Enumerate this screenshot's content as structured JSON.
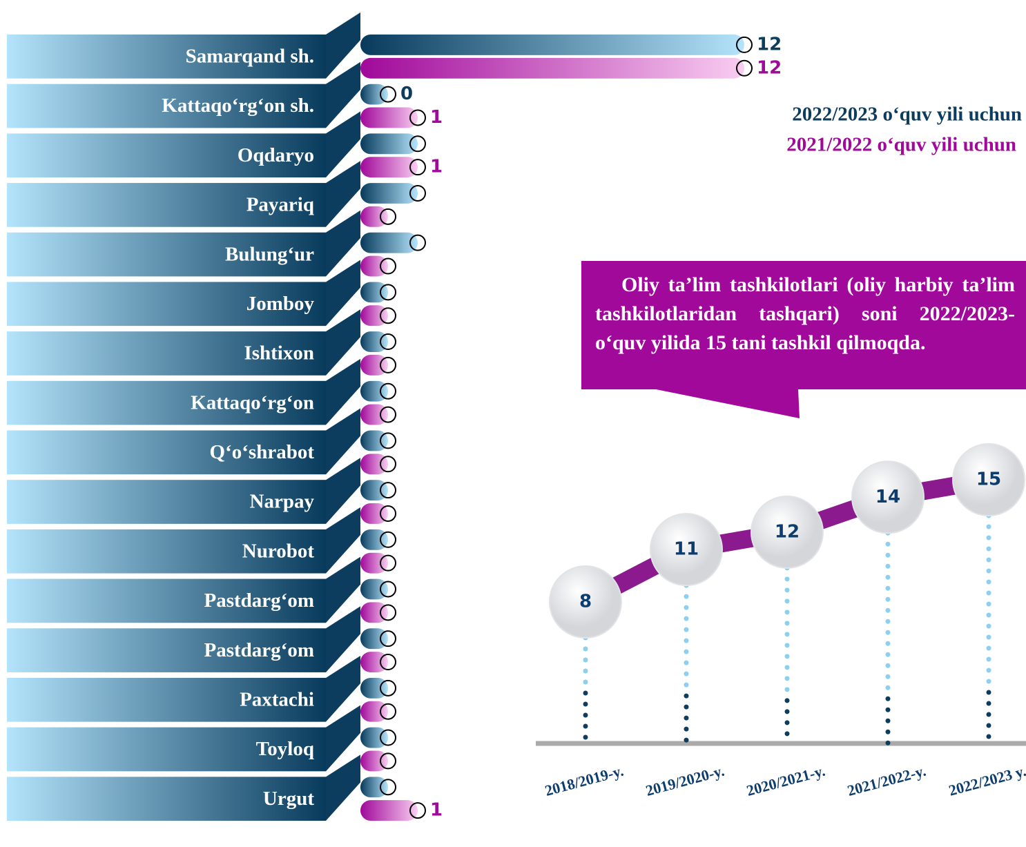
{
  "chart_data": [
    {
      "type": "bar",
      "categories": [
        "Samarqand sh.",
        "Kattaqo‘rg‘on sh.",
        "Oqdaryo",
        "Payariq",
        "Bulung‘ur",
        "Jomboy",
        "Ishtixon",
        "Kattaqo‘rg‘on",
        "Q‘o‘shrabot",
        "Narpay",
        "Nurobot",
        "Pastdarg‘om",
        "Pastdarg‘om",
        "Paxtachi",
        "Toyloq",
        "Urgut"
      ],
      "series": [
        {
          "name": "2022/2023  o‘quv yili uchun",
          "color": "#0d3d5e",
          "values": [
            12,
            0,
            1,
            1,
            1,
            0,
            0,
            0,
            0,
            0,
            0,
            0,
            0,
            0,
            0,
            0
          ],
          "value_labels": [
            "12",
            "0",
            null,
            null,
            null,
            null,
            null,
            null,
            null,
            null,
            null,
            null,
            null,
            null,
            null,
            null
          ]
        },
        {
          "name": "2021/2022 o‘quv yili uchun",
          "color": "#a0099a",
          "values": [
            12,
            1,
            1,
            0,
            0,
            0,
            0,
            0,
            0,
            0,
            0,
            0,
            0,
            0,
            0,
            1
          ],
          "value_labels": [
            "12",
            "1",
            "1",
            null,
            null,
            null,
            null,
            null,
            null,
            null,
            null,
            null,
            null,
            null,
            null,
            "1"
          ]
        }
      ]
    },
    {
      "type": "line",
      "annotation": "Oliy ta’lim tashkilotlari (oliy harbiy ta’lim tashkilotlaridan tashqari) soni 2022/2023- o‘quv yilida 15 tani tashkil qilmoqda.",
      "categories": [
        "2018/2019-y.",
        "2019/2020-y.",
        "2020/2021-y.",
        "2021/2022-y.",
        "2022/2023 y."
      ],
      "values": [
        8,
        11,
        12,
        14,
        15
      ],
      "color": "#8b1a8f"
    }
  ]
}
